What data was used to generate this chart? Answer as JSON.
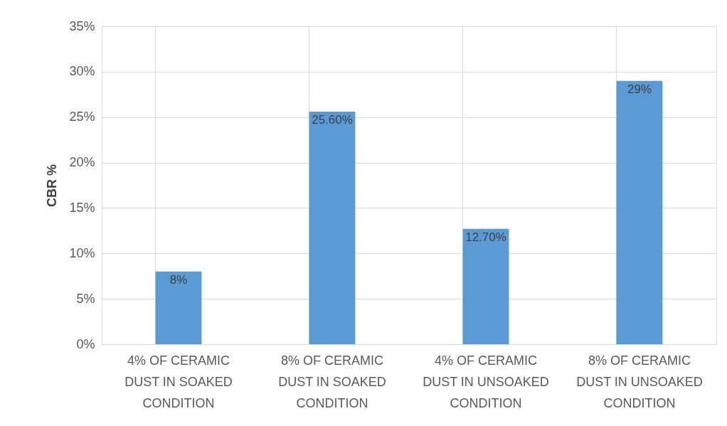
{
  "chart_data": {
    "type": "bar",
    "ylabel": "CBR %",
    "categories": [
      "4% OF CERAMIC DUST IN SOAKED CONDITION",
      "8% OF CERAMIC DUST IN SOAKED CONDITION",
      "4% OF CERAMIC DUST IN UNSOAKED CONDITION",
      "8% OF CERAMIC DUST IN UNSOAKED CONDITION"
    ],
    "values": [
      8,
      25.6,
      12.7,
      29
    ],
    "value_labels": [
      "8%",
      "25.60%",
      "12.70%",
      "29%"
    ],
    "color": "#5b9bd5",
    "ylim": [
      0,
      35
    ],
    "yticks": [
      {
        "value": 0,
        "label": "0%"
      },
      {
        "value": 5,
        "label": "5%"
      },
      {
        "value": 10,
        "label": "10%"
      },
      {
        "value": 15,
        "label": "15%"
      },
      {
        "value": 20,
        "label": "20%"
      },
      {
        "value": 25,
        "label": "25%"
      },
      {
        "value": 30,
        "label": "30%"
      },
      {
        "value": 35,
        "label": "35%"
      }
    ],
    "grid": true
  }
}
